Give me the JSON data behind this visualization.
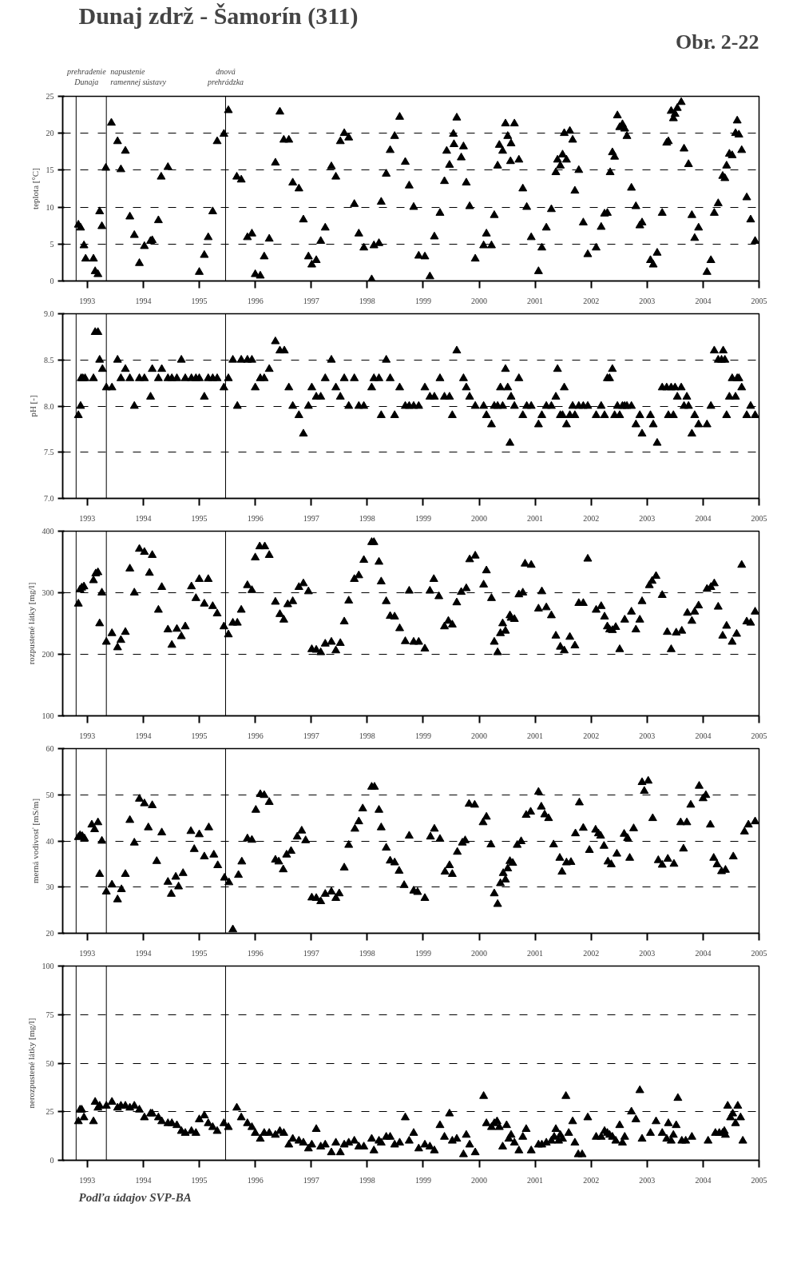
{
  "chart_data": [
    {
      "type": "scatter",
      "title": "Dunaj zdrž - Šamorín (311)",
      "annotations": [
        "Obr. 2-22"
      ],
      "ylabel": "teplota [°C]",
      "xlim": [
        1992.56,
        2005
      ],
      "xticks": [
        1993,
        1994,
        1995,
        1996,
        1997,
        1998,
        1999,
        2000,
        2001,
        2002,
        2003,
        2004,
        2005
      ],
      "ylim": [
        0,
        25
      ],
      "yticks": [
        0,
        5,
        10,
        15,
        20,
        25
      ],
      "grid": "y",
      "marker": "triangle",
      "ref_lines": [
        {
          "axis": "x",
          "value": 1992.8,
          "label": "prehradenie\nDunaja"
        },
        {
          "axis": "x",
          "value": 1993.34,
          "label": "napustenie\nramennej sústavy"
        },
        {
          "axis": "x",
          "value": 1995.47,
          "label": "dnová\nprehrádzka"
        }
      ],
      "series": [
        {
          "color": "#000000",
          "x": [
            1992.84,
            1992.88,
            1992.94,
            1992.97,
            1993.11,
            1993.14,
            1993.19,
            1993.22,
            1993.26,
            1993.33,
            1993.43,
            1993.54,
            1993.6,
            1993.68,
            1993.76,
            1993.84,
            1993.93,
            1994.02,
            1994.13,
            1994.16,
            1994.27,
            1994.32,
            1994.44,
            1995.0,
            1995.09,
            1995.16,
            1995.24,
            1995.32,
            1995.44,
            1995.52,
            1995.67,
            1995.75,
            1995.86,
            1995.94,
            1996.0,
            1996.09,
            1996.16,
            1996.25,
            1996.36,
            1996.44,
            1996.51,
            1996.6,
            1996.67,
            1996.78,
            1996.86,
            1996.95,
            1997.01,
            1997.09,
            1997.17,
            1997.25,
            1997.36,
            1997.44,
            1997.52,
            1997.59,
            1997.67,
            1997.77,
            1997.85,
            1997.94,
            1998.08,
            1998.12,
            1998.21,
            1998.25,
            1998.34,
            1998.41,
            1998.49,
            1998.58,
            1998.68,
            1998.75,
            1998.83,
            1998.92,
            1999.03,
            1999.12,
            1999.2,
            1999.3,
            1999.38,
            1999.42,
            1999.47,
            1999.54,
            1999.6,
            1999.55,
            1999.68,
            1999.72,
            1999.77,
            1999.83,
            1999.93,
            2000.08,
            2000.13,
            2000.22,
            2000.27,
            2000.33,
            2000.36,
            2000.42,
            2000.47,
            2000.51,
            2000.56,
            2000.57,
            2000.63,
            2000.71,
            2000.78,
            2000.85,
            2000.93,
            2001.06,
            2001.12,
            2001.2,
            2001.29,
            2001.37,
            2001.4,
            2001.45,
            2001.49,
            2001.52,
            2001.56,
            2001.62,
            2001.67,
            2001.71,
            2001.78,
            2001.86,
            2001.94,
            2002.09,
            2002.18,
            2002.24,
            2002.29,
            2002.34,
            2002.38,
            2002.42,
            2002.47,
            2002.51,
            2002.56,
            2002.6,
            2002.64,
            2002.72,
            2002.8,
            2002.87,
            2002.91,
            2003.06,
            2003.11,
            2003.18,
            2003.27,
            2003.35,
            2003.38,
            2003.43,
            2003.47,
            2003.5,
            2003.54,
            2003.61,
            2003.66,
            2003.74,
            2003.8,
            2003.85,
            2003.92,
            2004.07,
            2004.14,
            2004.2,
            2004.27,
            2004.35,
            2004.39,
            2004.42,
            2004.47,
            2004.52,
            2004.58,
            2004.61,
            2004.64,
            2004.69,
            2004.78,
            2004.85,
            2004.93
          ],
          "values": [
            7.6,
            7.2,
            4.8,
            3.0,
            3.0,
            1.3,
            0.9,
            9.4,
            7.4,
            15.3,
            21.4,
            18.9,
            15.1,
            17.6,
            8.7,
            6.2,
            2.4,
            4.7,
            5.4,
            5.5,
            8.2,
            14.1,
            15.4,
            1.2,
            3.5,
            5.9,
            9.4,
            18.9,
            19.9,
            23.1,
            14.1,
            13.7,
            5.9,
            6.4,
            0.9,
            0.7,
            3.3,
            5.7,
            16.0,
            22.9,
            19.1,
            19.1,
            13.3,
            12.5,
            8.3,
            3.3,
            2.2,
            2.8,
            5.4,
            7.2,
            15.5,
            14.1,
            18.9,
            20.0,
            19.4,
            10.4,
            6.4,
            4.5,
            0.2,
            4.8,
            5.1,
            10.7,
            14.5,
            17.7,
            19.6,
            22.2,
            16.1,
            12.9,
            10.0,
            3.4,
            3.3,
            0.6,
            6.0,
            9.2,
            13.5,
            17.6,
            15.7,
            19.9,
            22.1,
            18.5,
            16.7,
            18.2,
            13.3,
            10.1,
            3.0,
            4.8,
            6.4,
            4.8,
            8.9,
            15.6,
            18.4,
            17.6,
            21.3,
            19.6,
            16.2,
            18.6,
            21.3,
            16.4,
            12.5,
            10.0,
            5.9,
            1.3,
            4.5,
            7.2,
            9.7,
            14.7,
            16.4,
            15.6,
            17.1,
            20.0,
            16.4,
            20.3,
            19.1,
            12.2,
            15.0,
            7.9,
            3.6,
            4.5,
            7.3,
            9.1,
            9.2,
            14.7,
            17.4,
            16.8,
            22.4,
            20.8,
            21.2,
            20.6,
            19.6,
            12.6,
            10.1,
            7.5,
            7.9,
            2.8,
            2.2,
            3.8,
            9.2,
            18.7,
            18.9,
            23.0,
            22.0,
            22.6,
            23.4,
            24.2,
            17.9,
            15.8,
            8.9,
            5.8,
            7.2,
            1.2,
            2.8,
            9.2,
            10.5,
            14.2,
            13.9,
            15.6,
            17.2,
            17.0,
            20.0,
            21.7,
            19.8,
            17.7,
            11.3,
            8.3,
            5.4
          ]
        }
      ]
    },
    {
      "type": "scatter",
      "ylabel": "pH [-]",
      "xlim": [
        1992.56,
        2005
      ],
      "xticks": [
        1993,
        1994,
        1995,
        1996,
        1997,
        1998,
        1999,
        2000,
        2001,
        2002,
        2003,
        2004,
        2005
      ],
      "ylim": [
        7,
        9
      ],
      "yticks": [
        {
          "value": 7,
          "label": "7.0"
        },
        7.5,
        {
          "value": 8,
          "label": "8.0"
        },
        8.5,
        {
          "value": 9,
          "label": "9.0"
        }
      ],
      "grid": "y",
      "marker": "triangle",
      "ref_lines": [
        {
          "axis": "x",
          "value": 1992.8
        },
        {
          "axis": "x",
          "value": 1993.34
        },
        {
          "axis": "x",
          "value": 1995.47
        }
      ],
      "series": [
        {
          "color": "#000000",
          "x": [
            1992.84,
            1992.88,
            1992.89,
            1992.92,
            1992.96,
            1993.11,
            1993.14,
            1993.19,
            1993.22,
            1993.27,
            1993.34,
            1993.44,
            1993.54,
            1993.6,
            1993.68,
            1993.76,
            1993.84,
            1993.93,
            1994.02,
            1994.13,
            1994.16,
            1994.27,
            1994.33,
            1994.44,
            1994.51,
            1994.6,
            1994.68,
            1994.75,
            1994.86,
            1994.94,
            1995.0,
            1995.09,
            1995.16,
            1995.24,
            1995.32,
            1995.44,
            1995.52,
            1995.6,
            1995.68,
            1995.75,
            1995.86,
            1995.94,
            1996.0,
            1996.09,
            1996.16,
            1996.25,
            1996.36,
            1996.44,
            1996.52,
            1996.6,
            1996.67,
            1996.78,
            1996.86,
            1996.95,
            1997.01,
            1997.09,
            1997.17,
            1997.25,
            1997.36,
            1997.44,
            1997.52,
            1997.59,
            1997.67,
            1997.77,
            1997.85,
            1997.94,
            1998.08,
            1998.12,
            1998.21,
            1998.25,
            1998.34,
            1998.41,
            1998.49,
            1998.58,
            1998.68,
            1998.75,
            1998.83,
            1998.92,
            1999.03,
            1999.12,
            1999.2,
            1999.3,
            1999.38,
            1999.47,
            1999.52,
            1999.6,
            1999.72,
            1999.77,
            1999.83,
            1999.93,
            2000.08,
            2000.13,
            2000.22,
            2000.27,
            2000.33,
            2000.38,
            2000.42,
            2000.47,
            2000.51,
            2000.55,
            2000.57,
            2000.63,
            2000.71,
            2000.78,
            2000.85,
            2000.93,
            2001.06,
            2001.12,
            2001.2,
            2001.29,
            2001.37,
            2001.4,
            2001.45,
            2001.49,
            2001.52,
            2001.56,
            2001.62,
            2001.67,
            2001.71,
            2001.78,
            2001.86,
            2001.94,
            2002.09,
            2002.18,
            2002.24,
            2002.29,
            2002.33,
            2002.38,
            2002.42,
            2002.47,
            2002.51,
            2002.56,
            2002.6,
            2002.64,
            2002.72,
            2002.8,
            2002.87,
            2002.91,
            2003.06,
            2003.11,
            2003.18,
            2003.27,
            2003.35,
            2003.38,
            2003.43,
            2003.47,
            2003.5,
            2003.54,
            2003.61,
            2003.66,
            2003.71,
            2003.74,
            2003.8,
            2003.85,
            2003.92,
            2004.07,
            2004.14,
            2004.2,
            2004.27,
            2004.33,
            2004.36,
            2004.39,
            2004.42,
            2004.47,
            2004.52,
            2004.58,
            2004.61,
            2004.64,
            2004.69,
            2004.78,
            2004.85,
            2004.93
          ],
          "values": [
            7.9,
            8.0,
            8.3,
            8.3,
            8.3,
            8.3,
            8.8,
            8.8,
            8.5,
            8.4,
            8.2,
            8.2,
            8.5,
            8.3,
            8.4,
            8.3,
            8.0,
            8.3,
            8.3,
            8.1,
            8.4,
            8.3,
            8.4,
            8.3,
            8.3,
            8.3,
            8.5,
            8.3,
            8.3,
            8.3,
            8.3,
            8.1,
            8.3,
            8.3,
            8.3,
            8.2,
            8.3,
            8.5,
            8.0,
            8.5,
            8.5,
            8.5,
            8.2,
            8.3,
            8.3,
            8.4,
            8.7,
            8.6,
            8.6,
            8.2,
            8.0,
            7.9,
            7.7,
            8.0,
            8.2,
            8.1,
            8.1,
            8.3,
            8.5,
            8.2,
            8.1,
            8.3,
            8.0,
            8.3,
            8.0,
            8.0,
            8.2,
            8.3,
            8.3,
            7.9,
            8.5,
            8.3,
            7.9,
            8.2,
            8.0,
            8.0,
            8.0,
            8.0,
            8.2,
            8.1,
            8.1,
            8.3,
            8.1,
            8.1,
            7.9,
            8.6,
            8.3,
            8.2,
            8.1,
            8.0,
            8.0,
            7.9,
            7.8,
            8.0,
            8.0,
            8.2,
            8.0,
            8.4,
            8.2,
            7.6,
            8.1,
            8.0,
            8.3,
            7.9,
            8.0,
            8.0,
            7.8,
            7.9,
            8.0,
            8.0,
            8.1,
            8.4,
            7.9,
            7.9,
            8.2,
            7.8,
            7.9,
            8.0,
            7.9,
            8.0,
            8.0,
            8.0,
            7.9,
            8.0,
            7.9,
            8.3,
            8.3,
            8.4,
            7.9,
            8.0,
            7.9,
            8.0,
            8.0,
            8.0,
            8.0,
            7.8,
            7.9,
            7.7,
            7.9,
            7.8,
            7.6,
            8.2,
            8.2,
            7.9,
            8.2,
            7.9,
            8.2,
            8.1,
            8.2,
            8.0,
            8.1,
            8.0,
            7.7,
            7.9,
            7.8,
            7.8,
            8.0,
            8.6,
            8.5,
            8.5,
            8.6,
            8.5,
            7.9,
            8.1,
            8.3,
            8.1,
            8.3,
            8.3,
            8.2,
            7.9,
            8.0,
            7.9
          ]
        }
      ]
    },
    {
      "type": "scatter",
      "ylabel": "rozpustené látky [mg/l]",
      "xlim": [
        1992.56,
        2005
      ],
      "xticks": [
        1993,
        1994,
        1995,
        1996,
        1997,
        1998,
        1999,
        2000,
        2001,
        2002,
        2003,
        2004,
        2005
      ],
      "ylim": [
        100,
        400
      ],
      "yticks": [
        100,
        200,
        300,
        400
      ],
      "grid": "y",
      "marker": "triangle",
      "ref_lines": [
        {
          "axis": "x",
          "value": 1992.8
        },
        {
          "axis": "x",
          "value": 1993.34
        },
        {
          "axis": "x",
          "value": 1995.47
        }
      ],
      "series": [
        {
          "color": "#000000",
          "x": [
            1992.84,
            1992.87,
            1992.9,
            1992.94,
            1993.11,
            1993.15,
            1993.19,
            1993.22,
            1993.26,
            1993.34,
            1993.44,
            1993.54,
            1993.6,
            1993.68,
            1993.76,
            1993.84,
            1993.93,
            1994.02,
            1994.11,
            1994.16,
            1994.27,
            1994.33,
            1994.44,
            1994.51,
            1994.6,
            1994.68,
            1994.75,
            1994.86,
            1994.94,
            1995.0,
            1995.09,
            1995.16,
            1995.24,
            1995.32,
            1995.44,
            1995.52,
            1995.6,
            1995.68,
            1995.75,
            1995.86,
            1995.94,
            1996.0,
            1996.08,
            1996.17,
            1996.25,
            1996.36,
            1996.44,
            1996.51,
            1996.58,
            1996.67,
            1996.78,
            1996.86,
            1996.95,
            1997.01,
            1997.09,
            1997.17,
            1997.25,
            1997.36,
            1997.44,
            1997.52,
            1997.59,
            1997.67,
            1997.77,
            1997.85,
            1997.94,
            1998.08,
            1998.12,
            1998.21,
            1998.25,
            1998.34,
            1998.41,
            1998.49,
            1998.58,
            1998.68,
            1998.75,
            1998.83,
            1998.92,
            1999.03,
            1999.12,
            1999.19,
            1999.28,
            1999.38,
            1999.45,
            1999.52,
            1999.6,
            1999.68,
            1999.77,
            1999.83,
            1999.93,
            2000.08,
            2000.13,
            2000.22,
            2000.27,
            2000.33,
            2000.38,
            2000.42,
            2000.47,
            2000.55,
            2000.57,
            2000.63,
            2000.71,
            2000.78,
            2000.82,
            2000.93,
            2001.06,
            2001.12,
            2001.2,
            2001.29,
            2001.37,
            2001.45,
            2001.52,
            2001.62,
            2001.71,
            2001.78,
            2001.86,
            2001.94,
            2002.09,
            2002.18,
            2002.24,
            2002.29,
            2002.33,
            2002.38,
            2002.44,
            2002.51,
            2002.6,
            2002.72,
            2002.8,
            2002.87,
            2002.91,
            2003.04,
            2003.09,
            2003.16,
            2003.27,
            2003.36,
            2003.43,
            2003.52,
            2003.62,
            2003.72,
            2003.8,
            2003.85,
            2003.92,
            2004.07,
            2004.14,
            2004.2,
            2004.27,
            2004.35,
            2004.42,
            2004.52,
            2004.6,
            2004.69,
            2004.78,
            2004.85,
            2004.93
          ],
          "values": [
            282,
            305,
            308,
            310,
            320,
            331,
            333,
            250,
            300,
            220,
            234,
            211,
            223,
            236,
            339,
            300,
            371,
            366,
            332,
            361,
            272,
            309,
            240,
            215,
            241,
            229,
            245,
            310,
            291,
            322,
            282,
            322,
            278,
            266,
            245,
            232,
            251,
            251,
            272,
            312,
            304,
            357,
            375,
            375,
            361,
            285,
            265,
            256,
            281,
            286,
            309,
            315,
            302,
            208,
            207,
            203,
            217,
            220,
            206,
            218,
            253,
            287,
            322,
            328,
            353,
            382,
            382,
            350,
            318,
            286,
            262,
            261,
            242,
            221,
            303,
            220,
            220,
            209,
            303,
            322,
            294,
            245,
            254,
            248,
            284,
            301,
            307,
            354,
            360,
            313,
            336,
            291,
            220,
            203,
            234,
            250,
            238,
            263,
            259,
            257,
            297,
            300,
            347,
            345,
            274,
            302,
            276,
            263,
            230,
            212,
            206,
            228,
            214,
            283,
            283,
            355,
            272,
            278,
            261,
            245,
            240,
            239,
            244,
            208,
            256,
            269,
            240,
            256,
            286,
            312,
            319,
            327,
            296,
            236,
            208,
            235,
            238,
            267,
            254,
            269,
            279,
            306,
            309,
            315,
            277,
            230,
            246,
            220,
            233,
            345,
            253,
            251,
            269
          ]
        }
      ]
    },
    {
      "type": "scatter",
      "ylabel": "merná vodivosť [mS/m]",
      "xlim": [
        1992.56,
        2005
      ],
      "xticks": [
        1993,
        1994,
        1995,
        1996,
        1997,
        1998,
        1999,
        2000,
        2001,
        2002,
        2003,
        2004,
        2005
      ],
      "ylim": [
        20,
        60
      ],
      "yticks": [
        20,
        30,
        40,
        50,
        60
      ],
      "grid": "y",
      "marker": "triangle",
      "ref_lines": [
        {
          "axis": "x",
          "value": 1992.8
        },
        {
          "axis": "x",
          "value": 1993.34
        },
        {
          "axis": "x",
          "value": 1995.47
        }
      ],
      "series": [
        {
          "color": "#000000",
          "x": [
            1992.84,
            1992.87,
            1992.91,
            1992.95,
            1993.08,
            1993.13,
            1993.19,
            1993.26,
            1993.22,
            1993.34,
            1993.44,
            1993.54,
            1993.61,
            1993.68,
            1993.76,
            1993.84,
            1993.93,
            1994.02,
            1994.09,
            1994.16,
            1994.24,
            1994.33,
            1994.44,
            1994.5,
            1994.58,
            1994.63,
            1994.71,
            1994.85,
            1994.91,
            1995.0,
            1995.09,
            1995.17,
            1995.26,
            1995.33,
            1995.45,
            1995.53,
            1995.6,
            1995.7,
            1995.76,
            1995.86,
            1995.94,
            1996.01,
            1996.09,
            1996.16,
            1996.25,
            1996.36,
            1996.42,
            1996.5,
            1996.56,
            1996.64,
            1996.75,
            1996.83,
            1996.9,
            1997.01,
            1997.09,
            1997.17,
            1997.25,
            1997.36,
            1997.44,
            1997.5,
            1997.59,
            1997.67,
            1997.78,
            1997.85,
            1997.92,
            1998.08,
            1998.13,
            1998.21,
            1998.25,
            1998.34,
            1998.41,
            1998.49,
            1998.57,
            1998.66,
            1998.75,
            1998.83,
            1998.9,
            1999.03,
            1999.13,
            1999.2,
            1999.3,
            1999.39,
            1999.47,
            1999.52,
            1999.61,
            1999.7,
            1999.75,
            1999.82,
            1999.92,
            2000.07,
            2000.13,
            2000.21,
            2000.27,
            2000.33,
            2000.38,
            2000.43,
            2000.47,
            2000.51,
            2000.55,
            2000.6,
            2000.68,
            2000.75,
            2000.84,
            2000.92,
            2001.06,
            2001.11,
            2001.17,
            2001.24,
            2001.33,
            2001.44,
            2001.48,
            2001.56,
            2001.64,
            2001.72,
            2001.79,
            2001.86,
            2001.97,
            2002.08,
            2002.13,
            2002.17,
            2002.23,
            2002.3,
            2002.36,
            2002.46,
            2002.59,
            2002.65,
            2002.69,
            2002.76,
            2002.91,
            2002.95,
            2003.02,
            2003.1,
            2003.2,
            2003.27,
            2003.37,
            2003.48,
            2003.6,
            2003.65,
            2003.71,
            2003.78,
            2003.93,
            2004.0,
            2004.05,
            2004.13,
            2004.19,
            2004.25,
            2004.33,
            2004.4,
            2004.54,
            2004.74,
            2004.81,
            2004.93
          ],
          "values": [
            40.8,
            41.2,
            41.0,
            40.5,
            43.5,
            42.5,
            44.0,
            40.0,
            32.8,
            29.0,
            30.5,
            27.3,
            29.5,
            32.8,
            44.5,
            39.6,
            49.1,
            48.1,
            42.9,
            47.7,
            35.6,
            41.8,
            31.1,
            28.5,
            32.2,
            30.1,
            33.0,
            42.1,
            38.2,
            41.4,
            36.6,
            42.9,
            37.0,
            34.7,
            32.0,
            31.0,
            20.8,
            32.6,
            35.5,
            40.5,
            40.2,
            46.7,
            50.1,
            49.9,
            48.4,
            35.9,
            35.5,
            33.8,
            37.0,
            37.8,
            40.9,
            42.2,
            40.1,
            27.7,
            27.6,
            26.9,
            28.5,
            29.0,
            27.6,
            28.6,
            34.2,
            39.1,
            42.6,
            44.2,
            47.0,
            51.7,
            51.7,
            46.7,
            42.9,
            38.5,
            35.7,
            35.3,
            33.5,
            30.4,
            41.1,
            29.2,
            28.9,
            27.6,
            40.9,
            42.6,
            40.4,
            33.3,
            34.7,
            32.8,
            37.6,
            39.6,
            40.1,
            48.0,
            47.8,
            44.0,
            45.2,
            39.2,
            28.6,
            26.3,
            30.8,
            33.0,
            31.6,
            34.0,
            35.6,
            35.2,
            39.1,
            39.9,
            45.6,
            46.3,
            50.6,
            47.4,
            45.7,
            44.9,
            39.2,
            36.3,
            33.3,
            35.3,
            35.4,
            41.6,
            48.3,
            42.8,
            38.0,
            42.4,
            41.6,
            41.1,
            38.9,
            35.5,
            34.9,
            37.2,
            41.5,
            40.6,
            36.3,
            42.7,
            52.7,
            50.8,
            53.0,
            44.9,
            35.8,
            34.8,
            36.1,
            35.0,
            44.0,
            38.3,
            44.0,
            47.8,
            51.9,
            49.2,
            49.9,
            43.5,
            36.3,
            34.9,
            33.4,
            33.7,
            36.6,
            42.0,
            43.5,
            44.2
          ]
        }
      ]
    },
    {
      "type": "scatter",
      "ylabel": "nerozpustené látky [mg/l]",
      "annotations": [
        "Podľa údajov SVP-BA"
      ],
      "xlim": [
        1992.56,
        2005
      ],
      "xticks": [
        1993,
        1994,
        1995,
        1996,
        1997,
        1998,
        1999,
        2000,
        2001,
        2002,
        2003,
        2004,
        2005
      ],
      "ylim": [
        0,
        100
      ],
      "yticks": [
        0,
        25,
        50,
        75,
        100
      ],
      "grid": "y",
      "marker": "triangle",
      "ref_lines": [
        {
          "axis": "x",
          "value": 1992.8
        },
        {
          "axis": "x",
          "value": 1993.34
        },
        {
          "axis": "x",
          "value": 1995.47
        }
      ],
      "series": [
        {
          "color": "#000000",
          "x": [
            1992.84,
            1992.87,
            1992.9,
            1992.94,
            1993.11,
            1993.14,
            1993.19,
            1993.22,
            1993.34,
            1993.44,
            1993.54,
            1993.6,
            1993.68,
            1993.76,
            1993.84,
            1993.93,
            1994.02,
            1994.13,
            1994.16,
            1994.27,
            1994.33,
            1994.44,
            1994.51,
            1994.6,
            1994.68,
            1994.75,
            1994.86,
            1994.94,
            1995.0,
            1995.09,
            1995.16,
            1995.24,
            1995.32,
            1995.44,
            1995.52,
            1995.67,
            1995.75,
            1995.86,
            1995.94,
            1996.0,
            1996.09,
            1996.16,
            1996.25,
            1996.36,
            1996.44,
            1996.51,
            1996.6,
            1996.67,
            1996.78,
            1996.86,
            1996.95,
            1997.01,
            1997.09,
            1997.17,
            1997.25,
            1997.36,
            1997.44,
            1997.52,
            1997.59,
            1997.67,
            1997.77,
            1997.85,
            1997.94,
            1998.08,
            1998.12,
            1998.21,
            1998.25,
            1998.34,
            1998.41,
            1998.49,
            1998.58,
            1998.68,
            1998.75,
            1998.83,
            1998.92,
            1999.03,
            1999.12,
            1999.2,
            1999.3,
            1999.38,
            1999.47,
            1999.52,
            1999.6,
            1999.72,
            1999.77,
            1999.83,
            1999.93,
            2000.08,
            2000.13,
            2000.22,
            2000.27,
            2000.32,
            2000.36,
            2000.42,
            2000.49,
            2000.53,
            2000.57,
            2000.63,
            2000.71,
            2000.78,
            2000.84,
            2000.93,
            2001.06,
            2001.12,
            2001.2,
            2001.29,
            2001.34,
            2001.37,
            2001.42,
            2001.45,
            2001.49,
            2001.55,
            2001.6,
            2001.67,
            2001.71,
            2001.77,
            2001.84,
            2001.94,
            2002.09,
            2002.18,
            2002.24,
            2002.29,
            2002.33,
            2002.38,
            2002.44,
            2002.51,
            2002.56,
            2002.6,
            2002.72,
            2002.8,
            2002.87,
            2002.91,
            2003.06,
            2003.16,
            2003.27,
            2003.35,
            2003.38,
            2003.43,
            2003.47,
            2003.52,
            2003.55,
            2003.62,
            2003.69,
            2003.8,
            2004.09,
            2004.22,
            2004.29,
            2004.35,
            2004.38,
            2004.4,
            2004.44,
            2004.49,
            2004.53,
            2004.58,
            2004.62,
            2004.67,
            2004.71
          ],
          "values": [
            20,
            26,
            26,
            22,
            20,
            30,
            27,
            28,
            28,
            30,
            27,
            28,
            28,
            27,
            28,
            26,
            22,
            24,
            24,
            22,
            20,
            19,
            19,
            18,
            15,
            14,
            15,
            14,
            21,
            23,
            19,
            17,
            15,
            19,
            17,
            27,
            22,
            19,
            17,
            14,
            11,
            14,
            14,
            13,
            15,
            14,
            8,
            11,
            10,
            9,
            6,
            8,
            16,
            7,
            8,
            4,
            9,
            4,
            8,
            9,
            10,
            7,
            7,
            11,
            5,
            10,
            9,
            12,
            12,
            8,
            9,
            22,
            10,
            14,
            6,
            8,
            7,
            5,
            18,
            12,
            24,
            10,
            11,
            3,
            13,
            8,
            4,
            33,
            19,
            17,
            19,
            20,
            17,
            7,
            18,
            11,
            13,
            9,
            5,
            12,
            16,
            5,
            8,
            8,
            9,
            10,
            12,
            16,
            10,
            13,
            11,
            33,
            14,
            20,
            9,
            3,
            3,
            22,
            12,
            12,
            15,
            14,
            13,
            12,
            10,
            18,
            9,
            12,
            25,
            21,
            36,
            11,
            14,
            20,
            14,
            11,
            19,
            10,
            13,
            18,
            32,
            10,
            10,
            12,
            10,
            14,
            14,
            14,
            15,
            13,
            28,
            22,
            24,
            19,
            28,
            22,
            10
          ]
        }
      ]
    }
  ]
}
